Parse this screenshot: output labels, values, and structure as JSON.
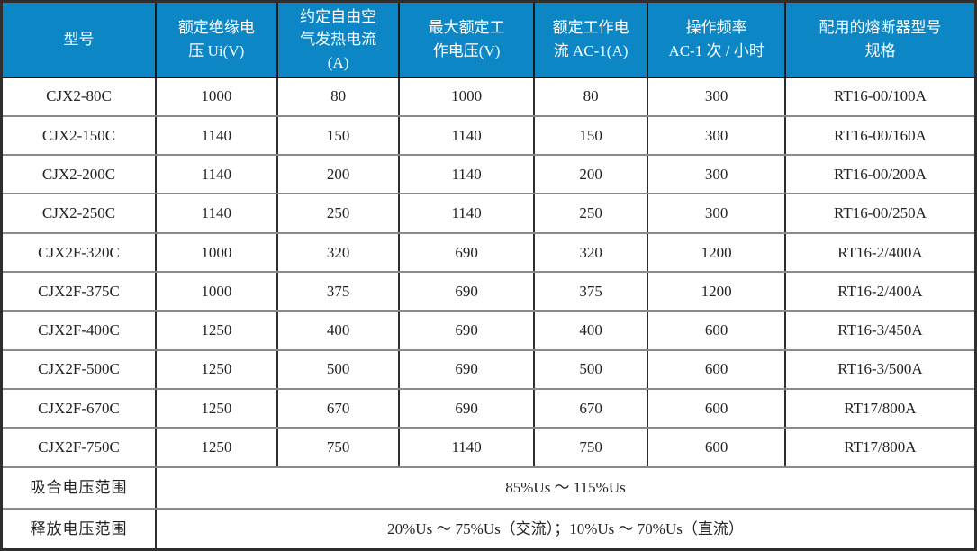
{
  "table": {
    "header_background": "#0C86C4",
    "header_text_color": "#FFFFFF",
    "body_text_color": "#222222",
    "columns": [
      {
        "label": "型号"
      },
      {
        "label": "额定绝缘电\n压 Ui(V)"
      },
      {
        "label": "约定自由空\n气发热电流\n(A)"
      },
      {
        "label": "最大额定工\n作电压(V)"
      },
      {
        "label": "额定工作电\n流 AC-1(A)"
      },
      {
        "label": "操作频率\nAC-1 次 / 小时"
      },
      {
        "label": "配用的熔断器型号\n规格"
      }
    ],
    "rows": [
      [
        "CJX2-80C",
        "1000",
        "80",
        "1000",
        "80",
        "300",
        "RT16-00/100A"
      ],
      [
        "CJX2-150C",
        "1140",
        "150",
        "1140",
        "150",
        "300",
        "RT16-00/160A"
      ],
      [
        "CJX2-200C",
        "1140",
        "200",
        "1140",
        "200",
        "300",
        "RT16-00/200A"
      ],
      [
        "CJX2-250C",
        "1140",
        "250",
        "1140",
        "250",
        "300",
        "RT16-00/250A"
      ],
      [
        "CJX2F-320C",
        "1000",
        "320",
        "690",
        "320",
        "1200",
        "RT16-2/400A"
      ],
      [
        "CJX2F-375C",
        "1000",
        "375",
        "690",
        "375",
        "1200",
        "RT16-2/400A"
      ],
      [
        "CJX2F-400C",
        "1250",
        "400",
        "690",
        "400",
        "600",
        "RT16-3/450A"
      ],
      [
        "CJX2F-500C",
        "1250",
        "500",
        "690",
        "500",
        "600",
        "RT16-3/500A"
      ],
      [
        "CJX2F-670C",
        "1250",
        "670",
        "690",
        "670",
        "600",
        "RT17/800A"
      ],
      [
        "CJX2F-750C",
        "1250",
        "750",
        "1140",
        "750",
        "600",
        "RT17/800A"
      ]
    ],
    "footer_rows": [
      {
        "label": "吸合电压范围",
        "value": "85%Us ～ 115%Us"
      },
      {
        "label": "释放电压范围",
        "value": "20%Us ～ 75%Us（交流）；10%Us ～ 70%Us（直流）"
      }
    ]
  }
}
